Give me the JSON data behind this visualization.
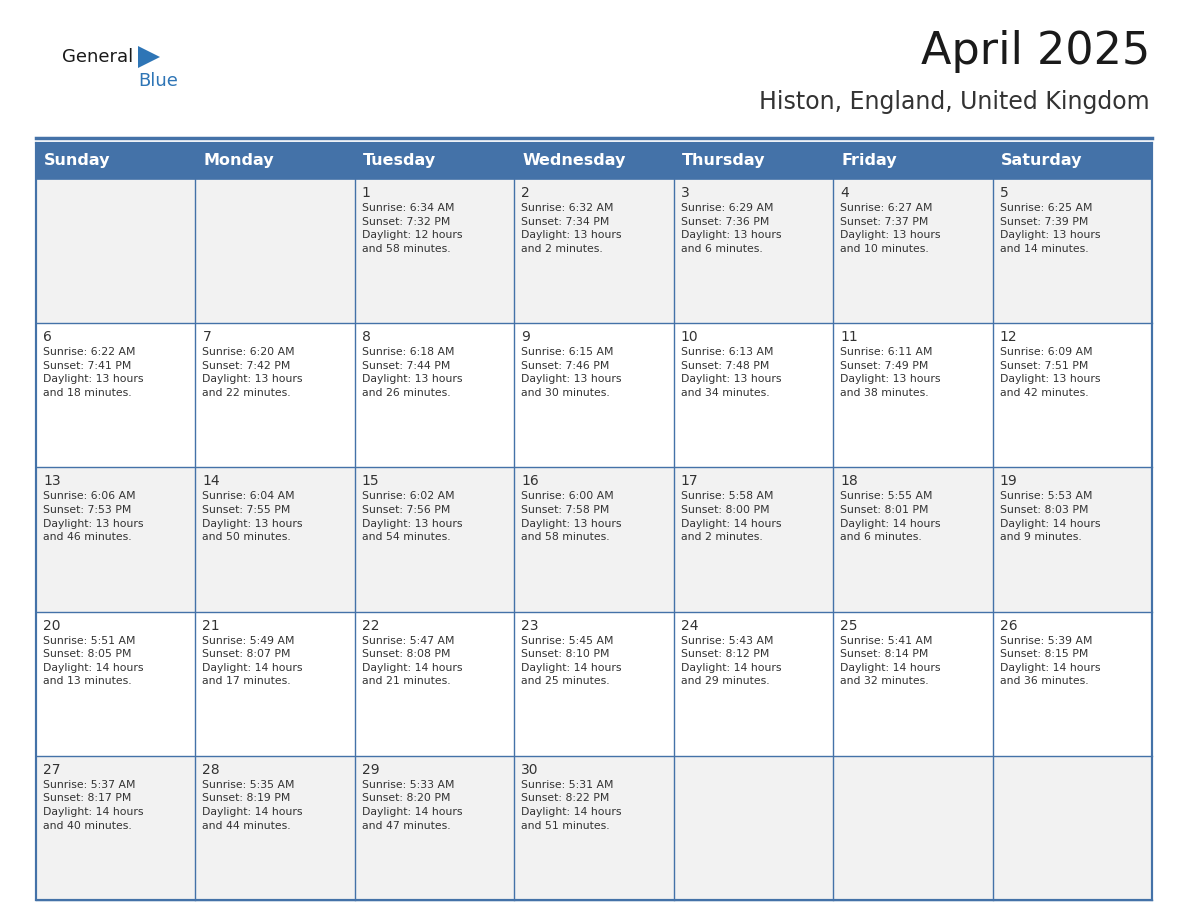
{
  "title": "April 2025",
  "subtitle": "Histon, England, United Kingdom",
  "header_bg_color": "#4472A8",
  "header_text_color": "#FFFFFF",
  "row_bg_colors": [
    "#F2F2F2",
    "#FFFFFF"
  ],
  "border_color": "#4472A8",
  "text_color": "#333333",
  "days_of_week": [
    "Sunday",
    "Monday",
    "Tuesday",
    "Wednesday",
    "Thursday",
    "Friday",
    "Saturday"
  ],
  "weeks": [
    [
      {
        "day": "",
        "info": ""
      },
      {
        "day": "",
        "info": ""
      },
      {
        "day": "1",
        "info": "Sunrise: 6:34 AM\nSunset: 7:32 PM\nDaylight: 12 hours\nand 58 minutes."
      },
      {
        "day": "2",
        "info": "Sunrise: 6:32 AM\nSunset: 7:34 PM\nDaylight: 13 hours\nand 2 minutes."
      },
      {
        "day": "3",
        "info": "Sunrise: 6:29 AM\nSunset: 7:36 PM\nDaylight: 13 hours\nand 6 minutes."
      },
      {
        "day": "4",
        "info": "Sunrise: 6:27 AM\nSunset: 7:37 PM\nDaylight: 13 hours\nand 10 minutes."
      },
      {
        "day": "5",
        "info": "Sunrise: 6:25 AM\nSunset: 7:39 PM\nDaylight: 13 hours\nand 14 minutes."
      }
    ],
    [
      {
        "day": "6",
        "info": "Sunrise: 6:22 AM\nSunset: 7:41 PM\nDaylight: 13 hours\nand 18 minutes."
      },
      {
        "day": "7",
        "info": "Sunrise: 6:20 AM\nSunset: 7:42 PM\nDaylight: 13 hours\nand 22 minutes."
      },
      {
        "day": "8",
        "info": "Sunrise: 6:18 AM\nSunset: 7:44 PM\nDaylight: 13 hours\nand 26 minutes."
      },
      {
        "day": "9",
        "info": "Sunrise: 6:15 AM\nSunset: 7:46 PM\nDaylight: 13 hours\nand 30 minutes."
      },
      {
        "day": "10",
        "info": "Sunrise: 6:13 AM\nSunset: 7:48 PM\nDaylight: 13 hours\nand 34 minutes."
      },
      {
        "day": "11",
        "info": "Sunrise: 6:11 AM\nSunset: 7:49 PM\nDaylight: 13 hours\nand 38 minutes."
      },
      {
        "day": "12",
        "info": "Sunrise: 6:09 AM\nSunset: 7:51 PM\nDaylight: 13 hours\nand 42 minutes."
      }
    ],
    [
      {
        "day": "13",
        "info": "Sunrise: 6:06 AM\nSunset: 7:53 PM\nDaylight: 13 hours\nand 46 minutes."
      },
      {
        "day": "14",
        "info": "Sunrise: 6:04 AM\nSunset: 7:55 PM\nDaylight: 13 hours\nand 50 minutes."
      },
      {
        "day": "15",
        "info": "Sunrise: 6:02 AM\nSunset: 7:56 PM\nDaylight: 13 hours\nand 54 minutes."
      },
      {
        "day": "16",
        "info": "Sunrise: 6:00 AM\nSunset: 7:58 PM\nDaylight: 13 hours\nand 58 minutes."
      },
      {
        "day": "17",
        "info": "Sunrise: 5:58 AM\nSunset: 8:00 PM\nDaylight: 14 hours\nand 2 minutes."
      },
      {
        "day": "18",
        "info": "Sunrise: 5:55 AM\nSunset: 8:01 PM\nDaylight: 14 hours\nand 6 minutes."
      },
      {
        "day": "19",
        "info": "Sunrise: 5:53 AM\nSunset: 8:03 PM\nDaylight: 14 hours\nand 9 minutes."
      }
    ],
    [
      {
        "day": "20",
        "info": "Sunrise: 5:51 AM\nSunset: 8:05 PM\nDaylight: 14 hours\nand 13 minutes."
      },
      {
        "day": "21",
        "info": "Sunrise: 5:49 AM\nSunset: 8:07 PM\nDaylight: 14 hours\nand 17 minutes."
      },
      {
        "day": "22",
        "info": "Sunrise: 5:47 AM\nSunset: 8:08 PM\nDaylight: 14 hours\nand 21 minutes."
      },
      {
        "day": "23",
        "info": "Sunrise: 5:45 AM\nSunset: 8:10 PM\nDaylight: 14 hours\nand 25 minutes."
      },
      {
        "day": "24",
        "info": "Sunrise: 5:43 AM\nSunset: 8:12 PM\nDaylight: 14 hours\nand 29 minutes."
      },
      {
        "day": "25",
        "info": "Sunrise: 5:41 AM\nSunset: 8:14 PM\nDaylight: 14 hours\nand 32 minutes."
      },
      {
        "day": "26",
        "info": "Sunrise: 5:39 AM\nSunset: 8:15 PM\nDaylight: 14 hours\nand 36 minutes."
      }
    ],
    [
      {
        "day": "27",
        "info": "Sunrise: 5:37 AM\nSunset: 8:17 PM\nDaylight: 14 hours\nand 40 minutes."
      },
      {
        "day": "28",
        "info": "Sunrise: 5:35 AM\nSunset: 8:19 PM\nDaylight: 14 hours\nand 44 minutes."
      },
      {
        "day": "29",
        "info": "Sunrise: 5:33 AM\nSunset: 8:20 PM\nDaylight: 14 hours\nand 47 minutes."
      },
      {
        "day": "30",
        "info": "Sunrise: 5:31 AM\nSunset: 8:22 PM\nDaylight: 14 hours\nand 51 minutes."
      },
      {
        "day": "",
        "info": ""
      },
      {
        "day": "",
        "info": ""
      },
      {
        "day": "",
        "info": ""
      }
    ]
  ],
  "logo_triangle_color": "#2E75B6",
  "logo_blue_color": "#2E75B6",
  "logo_general_color": "#1a1a1a",
  "title_fontsize": 32,
  "subtitle_fontsize": 17,
  "header_fontsize": 11.5,
  "day_number_fontsize": 10,
  "info_fontsize": 7.8
}
